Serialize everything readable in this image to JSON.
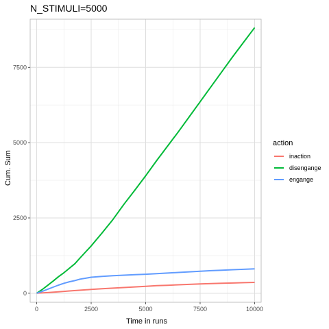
{
  "chart_data": {
    "type": "line",
    "title": "N_STIMULI=5000",
    "xlabel": "Time in runs",
    "ylabel": "Cum. Sum",
    "xlim": [
      -300,
      10300
    ],
    "ylim": [
      -300,
      9100
    ],
    "x_ticks": [
      0,
      2500,
      5000,
      7500,
      10000
    ],
    "x_tick_labels": [
      "0",
      "2500",
      "5000",
      "7500",
      "10000"
    ],
    "y_ticks": [
      0,
      2500,
      5000,
      7500
    ],
    "y_tick_labels": [
      "0",
      "2500",
      "5000",
      "7500"
    ],
    "grid": true,
    "legend_title": "action",
    "legend_position": "right",
    "series": [
      {
        "name": "inaction",
        "color": "#f8766d",
        "points": [
          [
            0,
            0
          ],
          [
            500,
            20
          ],
          [
            1000,
            45
          ],
          [
            1500,
            75
          ],
          [
            2000,
            100
          ],
          [
            2500,
            125
          ],
          [
            3000,
            150
          ],
          [
            3500,
            170
          ],
          [
            4000,
            190
          ],
          [
            4500,
            210
          ],
          [
            5000,
            230
          ],
          [
            5500,
            250
          ],
          [
            6000,
            265
          ],
          [
            6500,
            280
          ],
          [
            7000,
            295
          ],
          [
            7500,
            310
          ],
          [
            8000,
            320
          ],
          [
            8500,
            330
          ],
          [
            9000,
            340
          ],
          [
            9500,
            350
          ],
          [
            10000,
            360
          ]
        ]
      },
      {
        "name": "disengange",
        "color": "#00ba38",
        "points": [
          [
            0,
            0
          ],
          [
            250,
            120
          ],
          [
            500,
            260
          ],
          [
            750,
            400
          ],
          [
            1000,
            550
          ],
          [
            1250,
            680
          ],
          [
            1500,
            830
          ],
          [
            1750,
            980
          ],
          [
            2000,
            1180
          ],
          [
            2500,
            1570
          ],
          [
            3000,
            2000
          ],
          [
            3500,
            2450
          ],
          [
            4000,
            2950
          ],
          [
            4500,
            3420
          ],
          [
            5000,
            3900
          ],
          [
            5500,
            4400
          ],
          [
            6000,
            4880
          ],
          [
            6500,
            5360
          ],
          [
            7000,
            5860
          ],
          [
            7500,
            6360
          ],
          [
            8000,
            6860
          ],
          [
            8500,
            7360
          ],
          [
            9000,
            7860
          ],
          [
            9500,
            8340
          ],
          [
            10000,
            8820
          ]
        ]
      },
      {
        "name": "engange",
        "color": "#619cff",
        "points": [
          [
            0,
            0
          ],
          [
            250,
            60
          ],
          [
            500,
            130
          ],
          [
            750,
            200
          ],
          [
            1000,
            270
          ],
          [
            1250,
            330
          ],
          [
            1500,
            380
          ],
          [
            1750,
            420
          ],
          [
            2000,
            470
          ],
          [
            2250,
            500
          ],
          [
            2500,
            530
          ],
          [
            3000,
            560
          ],
          [
            3500,
            580
          ],
          [
            4000,
            600
          ],
          [
            4500,
            615
          ],
          [
            5000,
            630
          ],
          [
            5500,
            650
          ],
          [
            6000,
            670
          ],
          [
            6500,
            690
          ],
          [
            7000,
            710
          ],
          [
            7500,
            730
          ],
          [
            8000,
            750
          ],
          [
            8500,
            765
          ],
          [
            9000,
            780
          ],
          [
            9500,
            795
          ],
          [
            10000,
            810
          ]
        ]
      }
    ]
  }
}
